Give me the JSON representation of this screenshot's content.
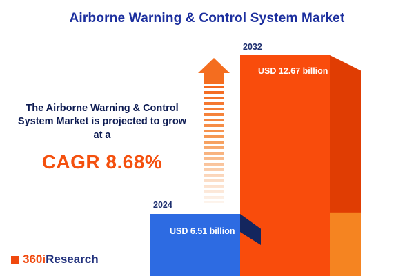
{
  "title": "Airborne Warning & Control System Market",
  "blurb": {
    "lines": [
      "The Airborne Warning & Control",
      "System Market is projected to grow",
      "at a"
    ],
    "cagr_label": "CAGR 8.68%"
  },
  "chart_data": {
    "type": "bar",
    "title": "Airborne Warning & Control System Market",
    "categories": [
      "2024",
      "2032"
    ],
    "values": [
      6.51,
      12.67
    ],
    "value_labels": [
      "USD 6.51 billion",
      "USD 12.67 billion"
    ],
    "unit": "USD billion",
    "cagr_percent": 8.68,
    "legend_position": "none",
    "grid": false,
    "colors": {
      "bar_2024_front": "#2d6be2",
      "bar_2024_side": "#14265e",
      "bar_2032_front": "#f94c0c",
      "bar_2032_side_dark": "#e03d03",
      "bar_2032_side_light": "#f58421",
      "accent_orange": "#f4500e",
      "navy_text": "#0d1b52",
      "title_blue": "#1c2f9e"
    }
  },
  "logo": {
    "part_orange": "360i",
    "part_navy": "Research"
  }
}
